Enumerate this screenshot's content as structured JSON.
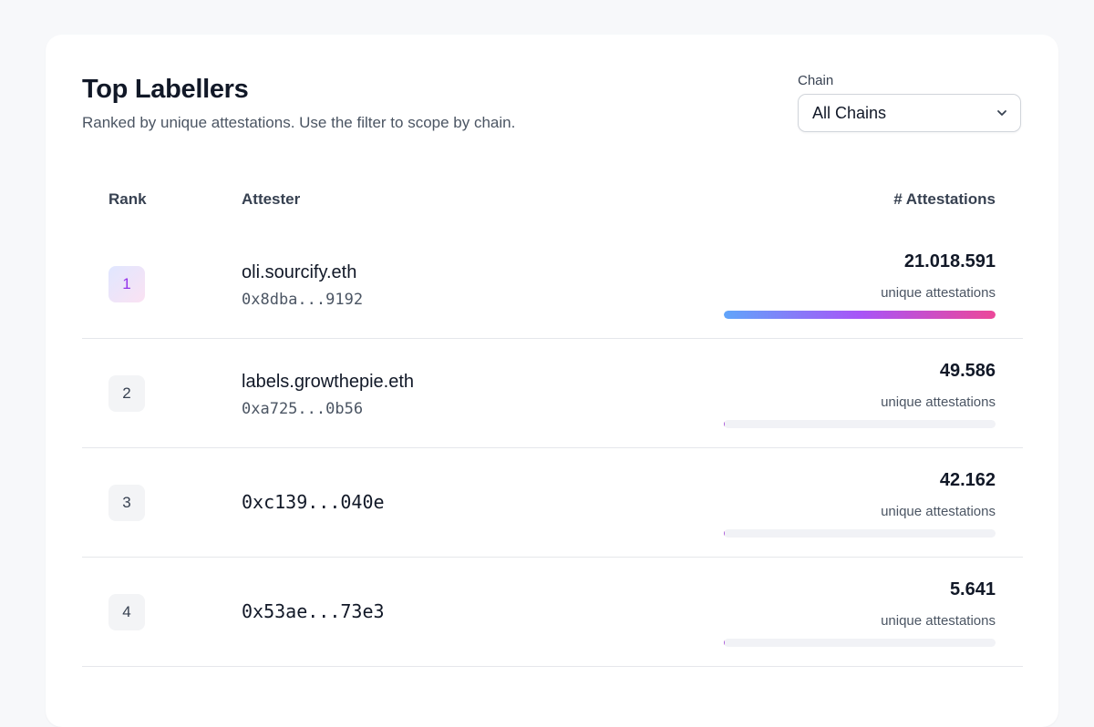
{
  "header": {
    "title": "Top Labellers",
    "subtitle": "Ranked by unique attestations. Use the filter to scope by chain."
  },
  "filter": {
    "label": "Chain",
    "selected": "All Chains"
  },
  "table": {
    "columns": {
      "rank": "Rank",
      "attester": "Attester",
      "count": "# Attestations"
    },
    "unit_label": "unique attestations",
    "rows": [
      {
        "rank": "1",
        "name": "oli.sourcify.eth",
        "address": "0x8dba...9192",
        "count": "21.018.591",
        "bar_fraction": 1.0
      },
      {
        "rank": "2",
        "name": "labels.growthepie.eth",
        "address": "0xa725...0b56",
        "count": "49.586",
        "bar_fraction": 0.00236
      },
      {
        "rank": "3",
        "name": "",
        "address": "0xc139...040e",
        "count": "42.162",
        "bar_fraction": 0.002
      },
      {
        "rank": "4",
        "name": "",
        "address": "0x53ae...73e3",
        "count": "5.641",
        "bar_fraction": 0.00027
      }
    ]
  },
  "colors": {
    "bar_gradient": [
      "#60a5fa",
      "#a855f7",
      "#ec4899"
    ],
    "rank1_text": "#9333ea"
  }
}
